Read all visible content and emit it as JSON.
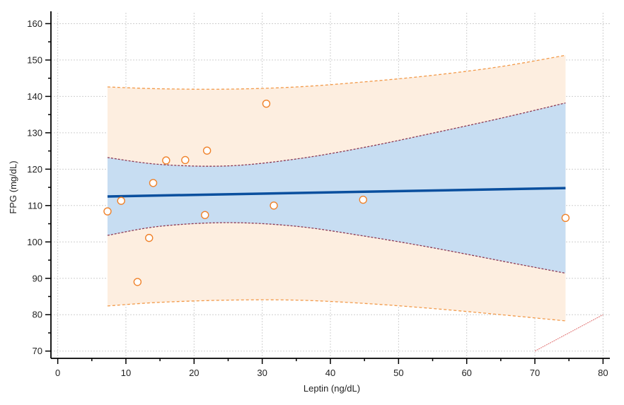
{
  "chart_data": {
    "type": "scatter",
    "xlabel": "Leptin (ng/dL)",
    "ylabel": "FPG (mg/dL)",
    "xlim": [
      -1,
      81
    ],
    "ylim": [
      68,
      163
    ],
    "xticks": [
      0,
      10,
      20,
      30,
      40,
      50,
      60,
      70,
      80
    ],
    "yticks": [
      70,
      80,
      90,
      100,
      110,
      120,
      130,
      140,
      150,
      160
    ],
    "grid": true,
    "legend": "none",
    "points": [
      {
        "x": 7.3,
        "y": 108.4
      },
      {
        "x": 9.3,
        "y": 111.3
      },
      {
        "x": 11.7,
        "y": 89.0
      },
      {
        "x": 13.4,
        "y": 101.1
      },
      {
        "x": 14.0,
        "y": 116.2
      },
      {
        "x": 15.9,
        "y": 122.4
      },
      {
        "x": 18.7,
        "y": 122.5
      },
      {
        "x": 21.6,
        "y": 107.4
      },
      {
        "x": 21.9,
        "y": 125.1
      },
      {
        "x": 30.6,
        "y": 138.0
      },
      {
        "x": 31.7,
        "y": 110.0
      },
      {
        "x": 44.8,
        "y": 111.6
      },
      {
        "x": 74.5,
        "y": 106.6
      }
    ],
    "regression_line": {
      "x": [
        7.3,
        74.5
      ],
      "y": [
        112.5,
        114.8
      ]
    },
    "confidence_band": {
      "x": [
        7.3,
        15,
        25,
        35,
        45,
        55,
        65,
        74.5
      ],
      "upper": [
        123.2,
        121.3,
        120.9,
        122.8,
        126.0,
        129.9,
        134.0,
        138.2
      ],
      "lower": [
        101.8,
        104.3,
        105.3,
        104.3,
        101.6,
        98.4,
        94.8,
        91.4
      ]
    },
    "prediction_band": {
      "x": [
        7.3,
        15,
        25,
        35,
        45,
        55,
        65,
        74.5
      ],
      "upper": [
        142.6,
        142.1,
        142.0,
        142.6,
        144.0,
        145.8,
        148.2,
        151.3
      ],
      "lower": [
        82.4,
        83.4,
        84.0,
        84.0,
        83.1,
        81.7,
        80.0,
        78.3
      ]
    },
    "reference_line": {
      "x": [
        70,
        80
      ],
      "y": [
        70,
        80
      ]
    },
    "colors": {
      "points": "#f0822a",
      "regression": "#0a4f9e",
      "confidence_fill": "#c7ddf2",
      "confidence_edge": "#8b3a55",
      "prediction_fill": "#fdeee0",
      "prediction_edge": "#f29a4a",
      "reference": "#e07070",
      "grid": "#cfcfcf",
      "axis": "#000000"
    }
  }
}
